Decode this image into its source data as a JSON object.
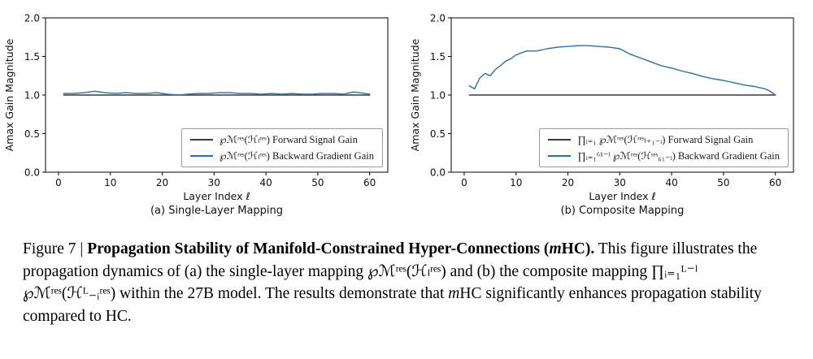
{
  "colors": {
    "forward": "#3a3a3a",
    "backward": "#2d6f9f",
    "axis": "#000000",
    "legend_border": "#9a9a9a"
  },
  "figure": {
    "caption_segments": [
      {
        "t": "Figure 7 | "
      },
      {
        "t": "Propagation Stability of Manifold-Constrained Hyper-Connections (",
        "b": true
      },
      {
        "t": "m",
        "b": true,
        "i": true
      },
      {
        "t": "HC).",
        "b": true
      },
      {
        "t": " This figure illustrates the propagation dynamics of (a) the single-layer mapping ℘ℳʳᵉˢ(ℋₗʳᵉˢ) and (b) the composite mapping ∏ᵢ₌₁ᴸ⁻ˡ ℘ℳʳᵉˢ(ℋᴸ₋ᵢʳᵉˢ) within the 27B model. The results demonstrate that "
      },
      {
        "t": "m",
        "i": true
      },
      {
        "t": "HC significantly enhances propagation stability compared to HC."
      }
    ]
  },
  "chart_data": [
    {
      "type": "line",
      "subcaption": "(a) Single-Layer Mapping",
      "xlabel": "Layer Index ℓ",
      "ylabel": "Amax Gain Magnitude",
      "xlim": [
        -2.5,
        63.5
      ],
      "ylim": [
        0,
        2
      ],
      "xticks": [
        0,
        10,
        20,
        30,
        40,
        50,
        60
      ],
      "yticks": [
        "0.0",
        "0.5",
        "1.0",
        "1.5",
        "2.0"
      ],
      "legend_position": "lower right inside",
      "grid": false,
      "legend": [
        {
          "label": "℘ℳʳᵉˢ(ℋₗʳᵉˢ) Forward Signal Gain",
          "color": "forward"
        },
        {
          "label": "℘ℳʳᵉˢ(ℋₗʳᵉˢ) Backward Gradient Gain",
          "color": "backward"
        }
      ],
      "series": [
        {
          "name": "Forward Signal Gain",
          "color": "forward",
          "x": [
            1,
            60
          ],
          "y": [
            1.0,
            1.0
          ]
        },
        {
          "name": "Backward Gradient Gain",
          "color": "backward",
          "x": [
            1,
            3,
            5,
            7,
            9,
            11,
            13,
            15,
            17,
            19,
            21,
            23,
            25,
            27,
            29,
            31,
            33,
            35,
            37,
            39,
            41,
            43,
            45,
            47,
            49,
            51,
            53,
            55,
            57,
            58,
            59,
            60
          ],
          "y": [
            1.02,
            1.02,
            1.03,
            1.05,
            1.03,
            1.02,
            1.03,
            1.02,
            1.02,
            1.03,
            1.01,
            1.0,
            1.01,
            1.02,
            1.02,
            1.03,
            1.03,
            1.02,
            1.02,
            1.01,
            1.02,
            1.01,
            1.02,
            1.01,
            1.01,
            1.02,
            1.02,
            1.01,
            1.04,
            1.03,
            1.02,
            1.01
          ]
        }
      ]
    },
    {
      "type": "line",
      "subcaption": "(b) Composite Mapping",
      "xlabel": "Layer Index ℓ",
      "ylabel": "Amax Gain Magnitude",
      "xlim": [
        -2.5,
        63.5
      ],
      "ylim": [
        0,
        2
      ],
      "xticks": [
        0,
        10,
        20,
        30,
        40,
        50,
        60
      ],
      "yticks": [
        "0.0",
        "0.5",
        "1.0",
        "1.5",
        "2.0"
      ],
      "legend_position": "lower right inside",
      "grid": false,
      "legend": [
        {
          "label": "∏ᵢ₌₁ ℘ℳʳᵉˢ(ℋʳᵉˢₗ₊₁₋ᵢ) Forward Signal Gain",
          "color": "forward"
        },
        {
          "label": "∏ᵢ₌₁⁶¹⁻ˡ ℘ℳʳᵉˢ(ℋʳᵉˢ₆₁₋ᵢ) Backward Gradient Gain",
          "color": "backward"
        }
      ],
      "series": [
        {
          "name": "Forward Signal Gain",
          "color": "forward",
          "x": [
            1,
            60
          ],
          "y": [
            1.0,
            1.0
          ]
        },
        {
          "name": "Backward Gradient Gain",
          "color": "backward",
          "x": [
            1,
            2,
            3,
            4,
            5,
            6,
            7,
            8,
            9,
            10,
            12,
            14,
            16,
            18,
            20,
            22,
            24,
            26,
            28,
            30,
            32,
            34,
            36,
            38,
            40,
            42,
            44,
            46,
            48,
            50,
            52,
            54,
            56,
            58,
            59,
            60
          ],
          "y": [
            1.12,
            1.08,
            1.22,
            1.28,
            1.25,
            1.33,
            1.38,
            1.44,
            1.47,
            1.52,
            1.57,
            1.57,
            1.6,
            1.62,
            1.63,
            1.64,
            1.64,
            1.63,
            1.62,
            1.6,
            1.53,
            1.48,
            1.43,
            1.38,
            1.35,
            1.31,
            1.28,
            1.24,
            1.21,
            1.19,
            1.16,
            1.13,
            1.11,
            1.08,
            1.05,
            1.0
          ]
        }
      ]
    }
  ]
}
